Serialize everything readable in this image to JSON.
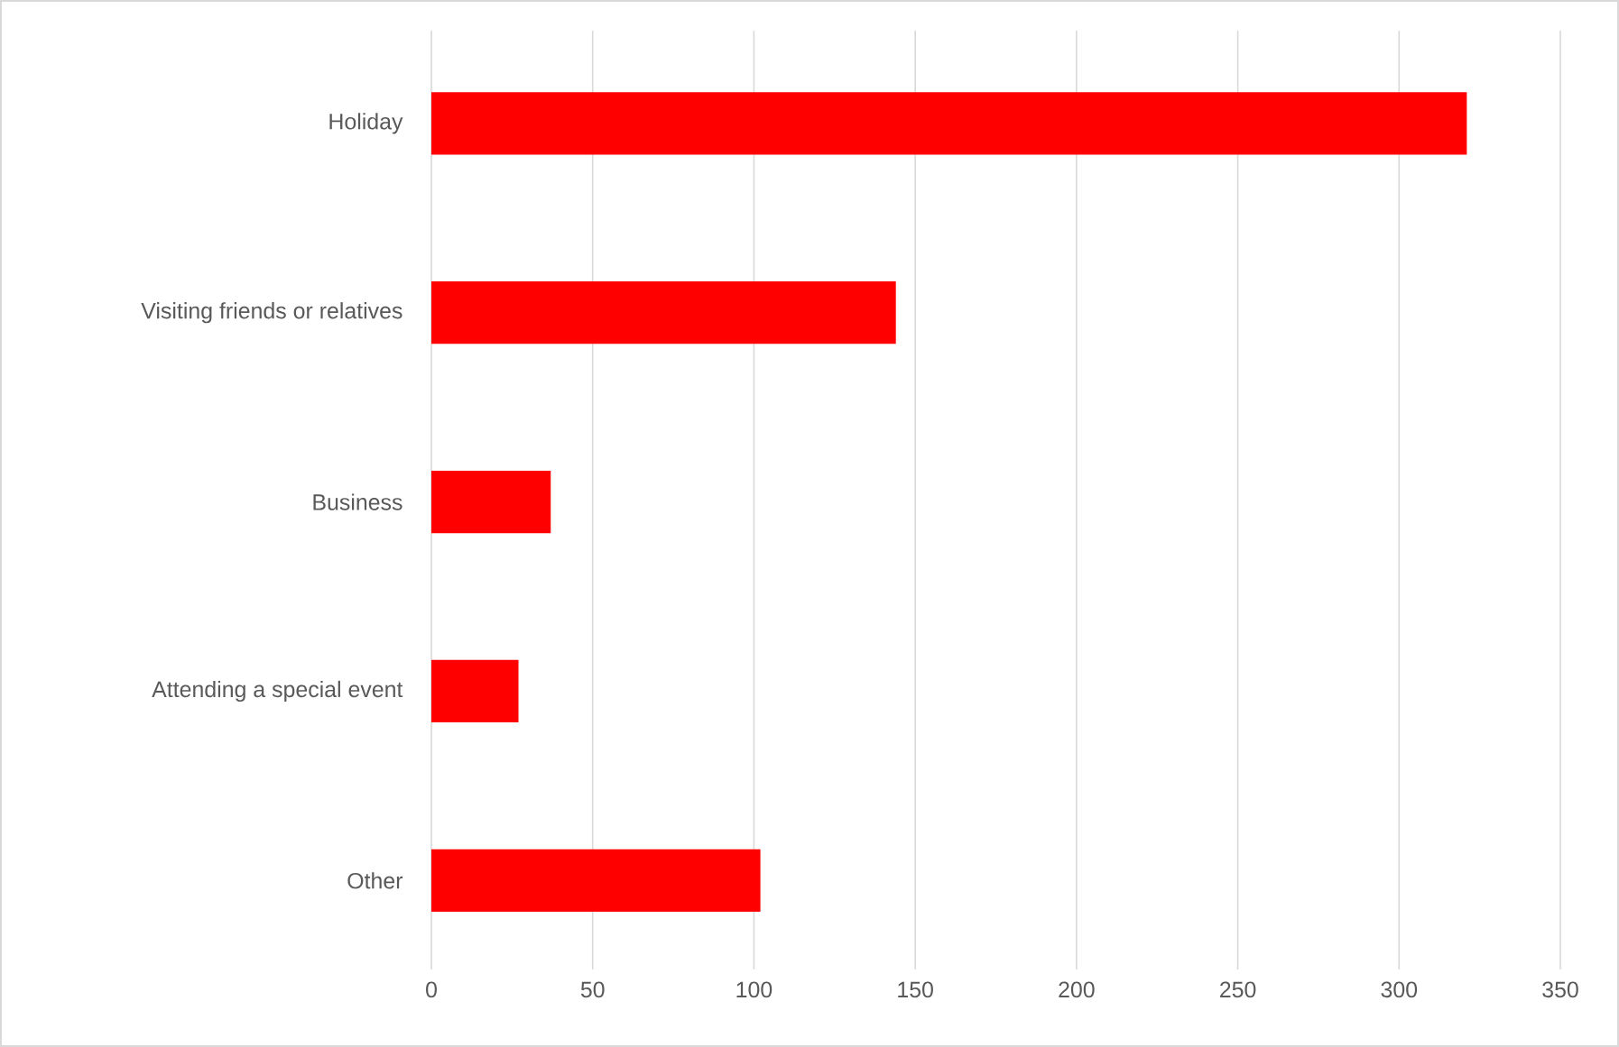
{
  "chart_data": {
    "type": "bar",
    "orientation": "horizontal",
    "categories": [
      "Holiday",
      "Visiting friends or relatives",
      "Business",
      "Attending a special event",
      "Other"
    ],
    "values": [
      321,
      144,
      37,
      27,
      102
    ],
    "color": "#ff0000",
    "xlim": [
      0,
      350
    ],
    "xticks": [
      0,
      50,
      100,
      150,
      200,
      250,
      300,
      350
    ],
    "grid": "x"
  }
}
